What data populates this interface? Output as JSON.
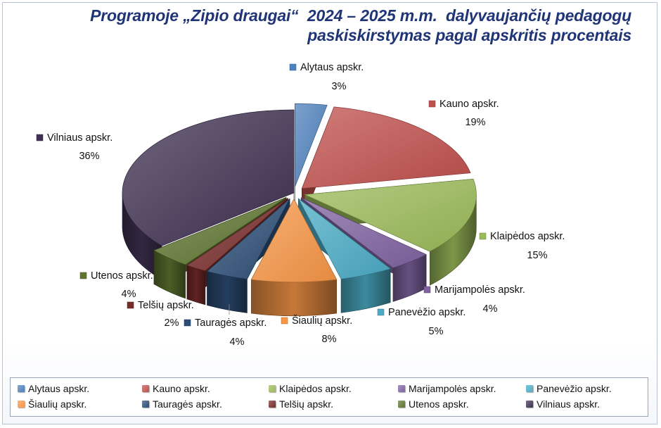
{
  "chart_data": {
    "type": "pie",
    "title": "Programoje „Zipio draugai“  2024 – 2025 m.m.  dalyvaujančių pedagogų paskiskirstymas pagal apskritis procentais",
    "title_lines": [
      "Programoje „Zipio draugai“  2024 – 2025 m.m.  dalyvaujančių pedagogų",
      "paskiskirstymas pagal apskritis procentais"
    ],
    "legend_position": "bottom",
    "slices": [
      {
        "label": "Alytaus apskr.",
        "value": 3,
        "value_label": "3%",
        "color": "#4f81bd",
        "exploded": true
      },
      {
        "label": "Kauno apskr.",
        "value": 19,
        "value_label": "19%",
        "color": "#c0504d",
        "exploded": true
      },
      {
        "label": "Klaipėdos apskr.",
        "value": 15,
        "value_label": "15%",
        "color": "#9bbb59",
        "exploded": true
      },
      {
        "label": "Marijampolės apskr.",
        "value": 4,
        "value_label": "4%",
        "color": "#8064a2",
        "exploded": true
      },
      {
        "label": "Panevėžio apskr.",
        "value": 5,
        "value_label": "5%",
        "color": "#4bacc6",
        "exploded": true
      },
      {
        "label": "Šiaulių apskr.",
        "value": 8,
        "value_label": "8%",
        "color": "#f79646",
        "exploded": true
      },
      {
        "label": "Tauragės apskr.",
        "value": 4,
        "value_label": "4%",
        "color": "#2c4d75",
        "exploded": true
      },
      {
        "label": "Telšių apskr.",
        "value": 2,
        "value_label": "2%",
        "color": "#772c2a",
        "exploded": true
      },
      {
        "label": "Utenos apskr.",
        "value": 4,
        "value_label": "4%",
        "color": "#5f7530",
        "exploded": true
      },
      {
        "label": "Vilniaus apskr.",
        "value": 36,
        "value_label": "36%",
        "color": "#403152",
        "exploded": false
      }
    ]
  }
}
